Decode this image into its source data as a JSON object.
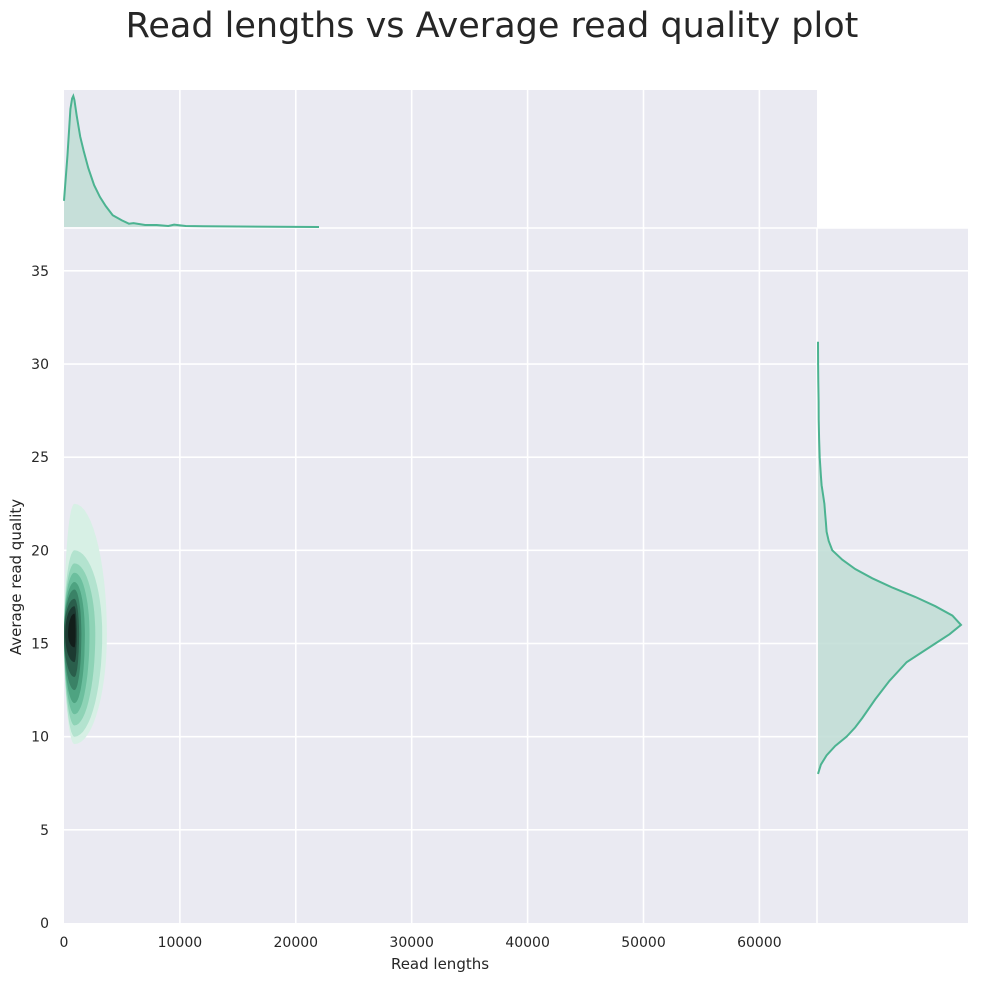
{
  "chart_data": {
    "type": "jointplot-kde",
    "title": "Read lengths vs Average read quality plot",
    "xlabel": "Read lengths",
    "ylabel": "Average read quality",
    "xlim": [
      0,
      78000
    ],
    "ylim": [
      0,
      37.3
    ],
    "x_ticks": [
      0,
      10000,
      20000,
      30000,
      40000,
      50000,
      60000
    ],
    "y_ticks": [
      0,
      5,
      10,
      15,
      20,
      25,
      30,
      35
    ],
    "grid": true,
    "colors": {
      "background": "#eaeaf2",
      "line": "#4cb391",
      "fill": "#bfddd5",
      "contours": [
        "#d7f0e5",
        "#b3e3cf",
        "#8ed3b6",
        "#6cbf9e",
        "#4ea381",
        "#3a8266",
        "#2a5e4b",
        "#1c3a31",
        "#121e1a"
      ]
    },
    "joint_density": {
      "center": {
        "x": 900,
        "y": 15.5
      },
      "contour_levels": [
        {
          "x_min": 0,
          "x_max": 3700,
          "y_min": 9.6,
          "y_max": 22.5
        },
        {
          "x_min": 0,
          "x_max": 3300,
          "y_min": 10.0,
          "y_max": 20.0
        },
        {
          "x_min": 0,
          "x_max": 2700,
          "y_min": 10.6,
          "y_max": 19.3
        },
        {
          "x_min": 0,
          "x_max": 2200,
          "y_min": 11.2,
          "y_max": 18.8
        },
        {
          "x_min": 0,
          "x_max": 1800,
          "y_min": 11.8,
          "y_max": 18.3
        },
        {
          "x_min": 0,
          "x_max": 1500,
          "y_min": 12.5,
          "y_max": 17.9
        },
        {
          "x_min": 0,
          "x_max": 1300,
          "y_min": 13.2,
          "y_max": 17.4
        },
        {
          "x_min": 100,
          "x_max": 1100,
          "y_min": 14.0,
          "y_max": 17.0
        },
        {
          "x_min": 350,
          "x_max": 1000,
          "y_min": 14.8,
          "y_max": 16.6
        }
      ]
    },
    "marginal_x": {
      "x": [
        0,
        300,
        550,
        700,
        800,
        900,
        1100,
        1400,
        1700,
        2100,
        2600,
        3100,
        3600,
        4200,
        5000,
        5600,
        6000,
        7000,
        8000,
        9000,
        9500,
        10500,
        12000,
        15000,
        22000
      ],
      "density": [
        0.2,
        0.55,
        0.9,
        0.98,
        1.0,
        0.97,
        0.85,
        0.69,
        0.58,
        0.45,
        0.32,
        0.23,
        0.16,
        0.09,
        0.05,
        0.025,
        0.03,
        0.015,
        0.015,
        0.008,
        0.018,
        0.008,
        0.006,
        0.004,
        0.0
      ]
    },
    "marginal_y": {
      "y": [
        8.0,
        8.5,
        9.0,
        9.5,
        10.0,
        10.5,
        11.0,
        12.0,
        13.0,
        14.0,
        15.0,
        15.5,
        16.0,
        16.5,
        17.0,
        17.5,
        18.0,
        18.5,
        19.0,
        19.5,
        20.0,
        20.5,
        21.0,
        21.5,
        22.0,
        22.5,
        23.0,
        23.5,
        24.0,
        25.0,
        26.0,
        27.0,
        28.0,
        29.0,
        30.0,
        31.2
      ],
      "density": [
        0.0,
        0.02,
        0.06,
        0.12,
        0.2,
        0.26,
        0.31,
        0.4,
        0.5,
        0.62,
        0.82,
        0.92,
        1.0,
        0.94,
        0.82,
        0.68,
        0.52,
        0.38,
        0.26,
        0.17,
        0.1,
        0.075,
        0.06,
        0.055,
        0.05,
        0.045,
        0.035,
        0.025,
        0.02,
        0.012,
        0.008,
        0.005,
        0.004,
        0.002,
        0.001,
        0.0
      ]
    }
  }
}
